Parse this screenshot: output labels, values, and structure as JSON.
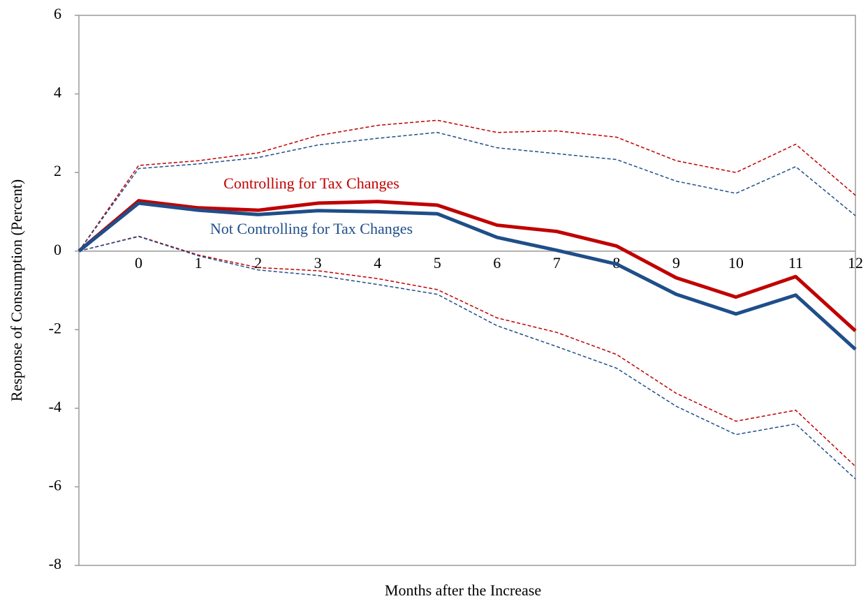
{
  "chart_data": {
    "type": "line",
    "x_label": "Months after the Increase",
    "y_label": "Response of  Consumption (Percent)",
    "categories": [
      null,
      "0",
      "1",
      "2",
      "3",
      "4",
      "5",
      "6",
      "7",
      "8",
      "9",
      "10",
      "11",
      "12"
    ],
    "ylim": [
      -8,
      6
    ],
    "yticks": [
      -8,
      -6,
      -4,
      -2,
      0,
      2,
      4,
      6
    ],
    "series": [
      {
        "name": "Controlling for Tax Changes",
        "color": "#c00000",
        "dashed": false,
        "values": [
          0,
          1.28,
          1.1,
          1.04,
          1.22,
          1.26,
          1.17,
          0.66,
          0.5,
          0.13,
          -0.68,
          -1.17,
          -0.65,
          -2.03
        ]
      },
      {
        "name": "Not Controlling for Tax Changes",
        "color": "#1f4e89",
        "dashed": false,
        "values": [
          0,
          1.22,
          1.04,
          0.93,
          1.03,
          1.0,
          0.95,
          0.35,
          0.02,
          -0.33,
          -1.1,
          -1.6,
          -1.12,
          -2.5
        ]
      },
      {
        "color": "#c00000",
        "dashed": true,
        "values": [
          0,
          2.18,
          2.3,
          2.5,
          2.94,
          3.2,
          3.33,
          3.02,
          3.06,
          2.9,
          2.3,
          2.0,
          2.72,
          1.42
        ]
      },
      {
        "color": "#1f4e89",
        "dashed": true,
        "values": [
          0,
          2.1,
          2.22,
          2.38,
          2.7,
          2.87,
          3.02,
          2.63,
          2.48,
          2.33,
          1.78,
          1.47,
          2.15,
          0.9
        ]
      },
      {
        "color": "#c00000",
        "dashed": true,
        "values": [
          0,
          0.38,
          -0.1,
          -0.42,
          -0.5,
          -0.7,
          -0.98,
          -1.7,
          -2.07,
          -2.63,
          -3.62,
          -4.33,
          -4.05,
          -5.48
        ]
      },
      {
        "color": "#1f4e89",
        "dashed": true,
        "values": [
          0,
          0.37,
          -0.12,
          -0.48,
          -0.62,
          -0.85,
          -1.1,
          -1.9,
          -2.43,
          -2.98,
          -3.95,
          -4.67,
          -4.4,
          -5.8
        ]
      }
    ]
  }
}
